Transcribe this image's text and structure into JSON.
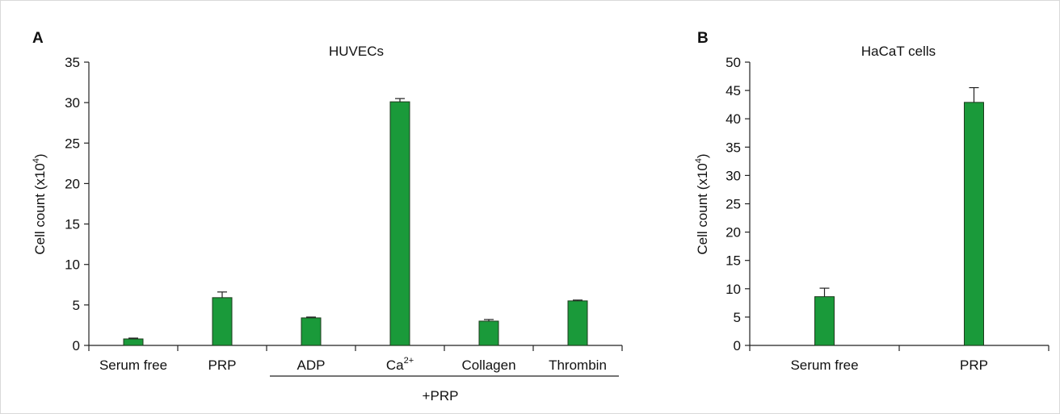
{
  "chart_data": [
    {
      "type": "bar",
      "panel_label": "A",
      "title": "HUVECs",
      "ylabel": "Cell count (x10",
      "ylabel_sup": "4",
      "ylabel_close": ")",
      "ylim": [
        0,
        35
      ],
      "yticks": [
        0,
        5,
        10,
        15,
        20,
        25,
        30,
        35
      ],
      "categories": [
        "Serum free",
        "PRP",
        "ADP",
        "Ca",
        "Collagen",
        "Thrombin"
      ],
      "category_sups": [
        "",
        "",
        "",
        "2+",
        "",
        ""
      ],
      "values": [
        0.8,
        5.9,
        3.4,
        30.1,
        3.0,
        5.5
      ],
      "errors": [
        0.1,
        0.7,
        0.1,
        0.4,
        0.2,
        0.1
      ],
      "group_label": "+PRP",
      "group_span": [
        "ADP",
        "Thrombin"
      ],
      "bar_color": "#1a9a3a",
      "grid": false
    },
    {
      "type": "bar",
      "panel_label": "B",
      "title": "HaCaT cells",
      "ylabel": "Cell count (x10",
      "ylabel_sup": "4",
      "ylabel_close": ")",
      "ylim": [
        0,
        50
      ],
      "yticks": [
        0,
        5,
        10,
        15,
        20,
        25,
        30,
        35,
        40,
        45,
        50
      ],
      "categories": [
        "Serum free",
        "PRP"
      ],
      "category_sups": [
        "",
        ""
      ],
      "values": [
        8.6,
        42.9
      ],
      "errors": [
        1.5,
        2.6
      ],
      "bar_color": "#1a9a3a",
      "grid": false
    }
  ]
}
